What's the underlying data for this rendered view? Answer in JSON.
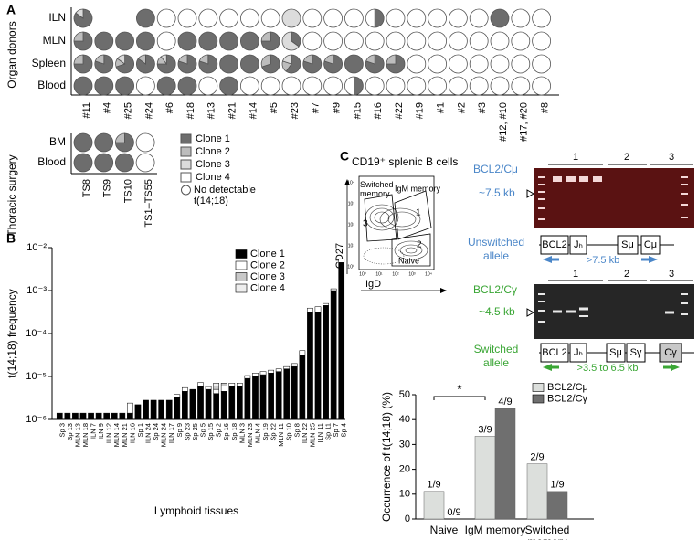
{
  "chart_data": [
    {
      "type": "pie-grid",
      "label": "A",
      "y_title": "Organ donors",
      "columns": [
        "#11",
        "#4",
        "#25",
        "#24",
        "#6",
        "#18",
        "#13",
        "#21",
        "#14",
        "#5",
        "#23",
        "#7",
        "#9",
        "#15",
        "#16",
        "#22",
        "#19",
        "#1",
        "#2",
        "#3",
        "#12, #10",
        "#17, #20",
        "#8"
      ],
      "colors": [
        "#6d6d6d",
        "#bdbdbd",
        "#dcdcdc",
        "#ffffff"
      ],
      "rows": [
        {
          "name": "ILN",
          "cells": [
            [
              85,
              0,
              15,
              0
            ],
            null,
            null,
            [
              100,
              0,
              0,
              0
            ],
            [
              0,
              0,
              0,
              0
            ],
            [
              0,
              0,
              0,
              0
            ],
            [
              0,
              0,
              0,
              0
            ],
            [
              0,
              0,
              0,
              0
            ],
            [
              0,
              0,
              0,
              0
            ],
            [
              0,
              0,
              0,
              0
            ],
            [
              0,
              0,
              100,
              0
            ],
            [
              0,
              0,
              0,
              0
            ],
            [
              0,
              0,
              0,
              0
            ],
            [
              0,
              0,
              0,
              0
            ],
            [
              50,
              0,
              0,
              50
            ],
            [
              0,
              0,
              0,
              0
            ],
            [
              0,
              0,
              0,
              0
            ],
            [
              0,
              0,
              0,
              0
            ],
            [
              0,
              0,
              0,
              0
            ],
            [
              0,
              0,
              0,
              0
            ],
            [
              100,
              0,
              0,
              0
            ],
            [
              0,
              0,
              0,
              0
            ],
            [
              0,
              0,
              0,
              0
            ]
          ]
        },
        {
          "name": "MLN",
          "cells": [
            [
              75,
              25,
              0,
              0
            ],
            [
              100,
              0,
              0,
              0
            ],
            [
              100,
              0,
              0,
              0
            ],
            [
              100,
              0,
              0,
              0
            ],
            [
              0,
              0,
              0,
              0
            ],
            [
              100,
              0,
              0,
              0
            ],
            [
              100,
              0,
              0,
              0
            ],
            [
              100,
              0,
              0,
              0
            ],
            [
              100,
              0,
              0,
              0
            ],
            [
              75,
              25,
              0,
              0
            ],
            [
              35,
              0,
              65,
              0
            ],
            [
              0,
              0,
              0,
              0
            ],
            [
              0,
              0,
              0,
              0
            ],
            [
              0,
              0,
              0,
              0
            ],
            [
              0,
              0,
              0,
              0
            ],
            [
              0,
              0,
              0,
              0
            ],
            [
              0,
              0,
              0,
              0
            ],
            [
              0,
              0,
              0,
              0
            ],
            [
              0,
              0,
              0,
              0
            ],
            [
              0,
              0,
              0,
              0
            ],
            [
              0,
              0,
              0,
              0
            ],
            [
              0,
              0,
              0,
              0
            ],
            [
              0,
              0,
              0,
              0
            ]
          ]
        },
        {
          "name": "Spleen",
          "cells": [
            [
              75,
              25,
              0,
              0
            ],
            [
              80,
              20,
              0,
              0
            ],
            [
              70,
              15,
              15,
              0
            ],
            [
              85,
              15,
              0,
              0
            ],
            [
              75,
              15,
              10,
              0
            ],
            [
              80,
              20,
              0,
              0
            ],
            [
              80,
              20,
              0,
              0
            ],
            [
              100,
              0,
              0,
              0
            ],
            [
              100,
              0,
              0,
              0
            ],
            [
              70,
              30,
              0,
              0
            ],
            [
              60,
              20,
              20,
              0
            ],
            [
              80,
              20,
              0,
              0
            ],
            [
              80,
              20,
              0,
              0
            ],
            [
              100,
              0,
              0,
              0
            ],
            [
              80,
              20,
              0,
              0
            ],
            [
              75,
              25,
              0,
              0
            ],
            [
              0,
              0,
              0,
              0
            ],
            [
              0,
              0,
              0,
              0
            ],
            [
              0,
              0,
              0,
              0
            ],
            [
              0,
              0,
              0,
              0
            ],
            [
              0,
              0,
              0,
              0
            ],
            [
              0,
              0,
              0,
              0
            ],
            [
              0,
              0,
              0,
              0
            ]
          ]
        },
        {
          "name": "Blood",
          "cells": [
            [
              100,
              0,
              0,
              0
            ],
            [
              100,
              0,
              0,
              0
            ],
            [
              100,
              0,
              0,
              0
            ],
            [
              0,
              0,
              0,
              0
            ],
            [
              100,
              0,
              0,
              0
            ],
            [
              100,
              0,
              0,
              0
            ],
            [
              0,
              0,
              0,
              0
            ],
            [
              100,
              0,
              0,
              0
            ],
            [
              0,
              0,
              0,
              0
            ],
            [
              0,
              0,
              0,
              0
            ],
            [
              0,
              0,
              0,
              0
            ],
            [
              0,
              0,
              0,
              0
            ],
            [
              0,
              0,
              0,
              0
            ],
            [
              50,
              0,
              0,
              50
            ],
            [
              0,
              0,
              0,
              0
            ],
            [
              0,
              0,
              0,
              0
            ],
            [
              0,
              0,
              0,
              0
            ],
            [
              0,
              0,
              0,
              0
            ],
            [
              0,
              0,
              0,
              0
            ],
            [
              0,
              0,
              0,
              0
            ],
            [
              0,
              0,
              0,
              0
            ],
            [
              0,
              0,
              0,
              0
            ],
            [
              0,
              0,
              0,
              0
            ]
          ]
        }
      ]
    },
    {
      "type": "pie-grid",
      "y_title": "Thoracic surgery",
      "columns": [
        "TS8",
        "TS9",
        "TS10",
        "TS1–TS55"
      ],
      "colors": [
        "#6d6d6d",
        "#bdbdbd",
        "#dcdcdc",
        "#ffffff"
      ],
      "rows": [
        {
          "name": "BM",
          "cells": [
            [
              100,
              0,
              0,
              0
            ],
            [
              100,
              0,
              0,
              0
            ],
            [
              75,
              25,
              0,
              0
            ],
            [
              0,
              0,
              0,
              0
            ]
          ]
        },
        {
          "name": "Blood",
          "cells": [
            [
              100,
              0,
              0,
              0
            ],
            [
              100,
              0,
              0,
              0
            ],
            [
              100,
              0,
              0,
              0
            ],
            [
              0,
              0,
              0,
              0
            ]
          ]
        }
      ],
      "legend": [
        "Clone 1",
        "Clone 2",
        "Clone 3",
        "Clone 4"
      ],
      "none_label": "No detectable t(14;18)"
    },
    {
      "type": "bar",
      "label": "B",
      "stacked": true,
      "log_scale": true,
      "y_title": "t(14;18) frequency",
      "x_title": "Lymphoid tissues",
      "categories": [
        "Sp 3",
        "Sp 13",
        "MLN 13",
        "MLN 18",
        "ILN 7",
        "ILN 9",
        "ILN 12",
        "MLN 14",
        "MLN 21",
        "ILN 16",
        "Sp 1",
        "ILN 24",
        "Sp 24",
        "MLN 24",
        "ILN 17",
        "Sp 9",
        "Sp 23",
        "Sp 25",
        "Sp 5",
        "Sp 15",
        "Sp 2",
        "Sp 16",
        "Sp 18",
        "MLN 3",
        "MLN 23",
        "MLN 4",
        "Sp 19",
        "Sp 22",
        "MLN 11",
        "Sp 10",
        "Sp 8",
        "ILN 22",
        "MLN 25",
        "ILN 11",
        "Sp 11",
        "Sp 7",
        "Sp 4"
      ],
      "series": [
        {
          "name": "Clone 1",
          "color": "#000000",
          "values": [
            1.4e-06,
            1.4e-06,
            1.4e-06,
            1.4e-06,
            1.4e-06,
            1.4e-06,
            1.4e-06,
            1.4e-06,
            1.4e-06,
            1.4e-06,
            2.2e-06,
            2.8e-06,
            2.8e-06,
            2.8e-06,
            2.8e-06,
            3.2e-06,
            4.5e-06,
            5e-06,
            6e-06,
            5e-06,
            4e-06,
            4.5e-06,
            6e-06,
            6e-06,
            9e-06,
            1e-05,
            1.1e-05,
            1.2e-05,
            1.3e-05,
            1.5e-05,
            1.7e-05,
            3.2e-05,
            0.00032,
            0.00032,
            0.00045,
            0.001,
            0.0045
          ]
        },
        {
          "name": "Clone 2",
          "color": "#ffffff",
          "values": [
            0,
            0,
            0,
            0,
            0,
            0,
            0,
            0,
            0,
            1e-06,
            0,
            0,
            0,
            0,
            0,
            6e-07,
            1e-06,
            0,
            1.2e-06,
            8e-07,
            1e-06,
            1.5e-06,
            1e-06,
            1e-06,
            1.5e-06,
            2e-06,
            2e-06,
            2e-06,
            2e-06,
            2e-06,
            3e-06,
            8e-06,
            7e-05,
            0.0001,
            5e-05,
            0.0001,
            0.001
          ]
        },
        {
          "name": "Clone 3",
          "color": "#c8c8c8",
          "values": [
            0,
            0,
            0,
            0,
            0,
            0,
            0,
            0,
            0,
            0,
            0,
            0,
            0,
            0,
            0,
            0,
            0,
            0,
            0,
            0,
            1e-06,
            1e-06,
            0,
            0,
            0,
            0,
            0,
            0,
            0,
            0,
            0,
            0,
            0,
            0,
            0,
            0,
            0
          ]
        },
        {
          "name": "Clone 4",
          "color": "#eeeeee",
          "values": [
            0,
            0,
            0,
            0,
            0,
            0,
            0,
            0,
            0,
            0,
            0,
            0,
            0,
            0,
            0,
            0,
            0,
            0,
            0,
            0,
            1e-06,
            0,
            0,
            0,
            0,
            0,
            0,
            0,
            0,
            0,
            0,
            0,
            0,
            0,
            0,
            0,
            0
          ]
        }
      ],
      "ylim": [
        1e-06,
        0.01
      ],
      "yticks": [
        {
          "value": 1e-06,
          "label": "10⁻⁶"
        },
        {
          "value": 1e-05,
          "label": "10⁻⁵"
        },
        {
          "value": 0.0001,
          "label": "10⁻⁴"
        },
        {
          "value": 0.001,
          "label": "10⁻³"
        },
        {
          "value": 0.01,
          "label": "10⁻²"
        }
      ]
    },
    {
      "type": "bar",
      "y_title": "Occurrence of t(14;18) (%)",
      "categories": [
        "Naive",
        "IgM memory",
        "Switched memory"
      ],
      "series": [
        {
          "name": "BCL2/Cμ",
          "color": "#dcdfdc",
          "values": [
            11.1,
            33.3,
            22.2
          ],
          "value_labels": [
            "1/9",
            "3/9",
            "2/9"
          ]
        },
        {
          "name": "BCL2/Cγ",
          "color": "#6f6f6f",
          "values": [
            0,
            44.4,
            11.1
          ],
          "value_labels": [
            "0/9",
            "4/9",
            "1/9"
          ]
        }
      ],
      "ylim": [
        0,
        50
      ],
      "yticks": [
        0,
        10,
        20,
        30,
        40,
        50
      ],
      "annotation": "*"
    }
  ],
  "panel_c": {
    "label": "C",
    "flow": {
      "title": "CD19⁺ splenic B cells",
      "x_title": "IgD",
      "y_title": "CD27",
      "tick_labels": [
        "10⁰",
        "10¹",
        "10²",
        "10³",
        "10⁴"
      ],
      "gates": [
        {
          "name": "Switched memory",
          "number": "3"
        },
        {
          "name": "IgM memory",
          "number": "1"
        },
        {
          "name": "Naive",
          "number": "2"
        }
      ]
    },
    "gel1": {
      "title": "BCL2/Cμ",
      "size": "~7.5 kb",
      "lanes": [
        "1",
        "2",
        "3"
      ]
    },
    "allele1": {
      "title": "Unswitched allele",
      "segments": [
        "BCL2",
        "Jₕ",
        "Sμ",
        "Cμ"
      ],
      "size": ">7.5 kb"
    },
    "gel2": {
      "title": "BCL2/Cγ",
      "size": "~4.5 kb",
      "lanes": [
        "1",
        "2",
        "3"
      ]
    },
    "allele2": {
      "title": "Switched allele",
      "segments": [
        "BCL2",
        "Jₕ",
        "Sμ",
        "Sγ",
        "Cγ"
      ],
      "size": ">3.5 to 6.5 kb"
    }
  }
}
